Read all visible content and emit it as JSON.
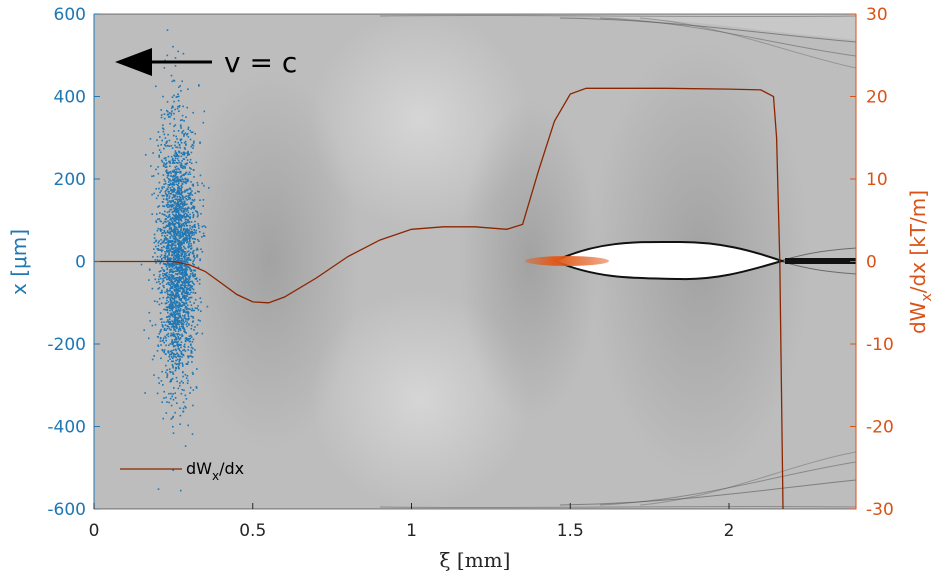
{
  "chart_data": {
    "type": "line",
    "xlabel": "ξ [mm]",
    "ylabel_left": "x [μm]",
    "ylabel_right": "dW_x/dx [kT/m]",
    "xlim": [
      0,
      2.4
    ],
    "ylim_left": [
      -600,
      600
    ],
    "ylim_right": [
      -30,
      30
    ],
    "x_ticks": [
      0,
      0.5,
      1,
      1.5,
      2
    ],
    "x_tick_labels": [
      "0",
      "0.5",
      "1",
      "1.5",
      "2"
    ],
    "y_left_ticks": [
      600,
      400,
      200,
      0,
      -200,
      -400,
      -600
    ],
    "y_left_tick_labels": [
      "600",
      "400",
      "200",
      "0",
      "-200",
      "-400",
      "-600"
    ],
    "y_right_ticks": [
      30,
      20,
      10,
      0,
      -10,
      -20,
      -30
    ],
    "y_right_tick_labels": [
      "30",
      "20",
      "10",
      "0",
      "-10",
      "-20",
      "-30"
    ],
    "annotation": "v = c",
    "legend": {
      "placement": "bottom-left",
      "entries": [
        {
          "label": "dW_x/dx",
          "color": "#8b2500"
        }
      ]
    },
    "series": [
      {
        "name": "dW_x/dx",
        "axis": "right",
        "color": "#8b2500",
        "x": [
          0,
          0.1,
          0.2,
          0.25,
          0.3,
          0.35,
          0.4,
          0.45,
          0.5,
          0.55,
          0.6,
          0.7,
          0.8,
          0.9,
          1.0,
          1.1,
          1.2,
          1.3,
          1.35,
          1.4,
          1.45,
          1.5,
          1.55,
          1.6,
          1.8,
          2.0,
          2.1,
          2.14,
          2.15,
          2.16,
          2.17
        ],
        "values": [
          0,
          0,
          0,
          0,
          -0.4,
          -1.2,
          -2.6,
          -4.0,
          -4.9,
          -5.0,
          -4.3,
          -2.0,
          0.6,
          2.6,
          3.9,
          4.2,
          4.2,
          3.9,
          4.5,
          11.0,
          17.0,
          20.3,
          21.0,
          21.0,
          21.0,
          20.9,
          20.8,
          20.0,
          15.0,
          0.0,
          -30.0
        ]
      }
    ],
    "colors": {
      "left_axis": "#1f77b4",
      "right_axis": "#d95319",
      "scatter": "#1f77b4",
      "witness_bunch": "#e05a1a",
      "background": "#b9b9b9"
    }
  }
}
